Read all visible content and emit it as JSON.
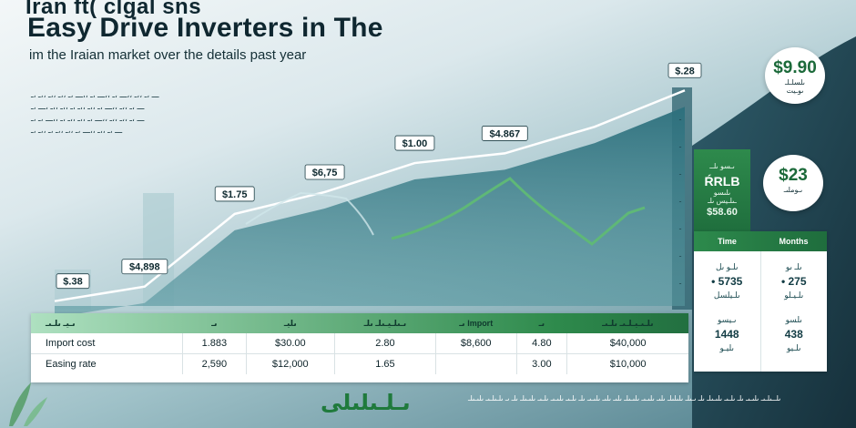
{
  "header": {
    "script_line": "Iran ft( clgal sns",
    "title": "Easy Drive Inverters in The",
    "subtitle": "im the Iraian market over the details past year"
  },
  "notes": [
    "ـــ ،ـ ،،ـ ،،ـــ ،ـ ،،ـــ ،ـ ،،ـــ ،ـ ،،ـ ،،ـ ،،ـ ،ـ",
    "ـــ ،ـ ،،ـ ،،ـــ ،ـ ،،ـ ،،ـ ،ـ ،،ـ ،،ـ ،ـــ ،ـ",
    "ـــ ،ـ ،،ـ ،،ـ ،،ـــ ،ـ ،،ـ ،،ـ ،ـ ،،ـــ ،ـ ،ـ",
    "ـــ ،ـ ،،ـ ،،ـــ ،ـ ،،ـ ،،ـ ،ـ ،،ـ ،ـ"
  ],
  "chart_data": {
    "type": "line",
    "series": [
      {
        "x": [
          1,
          2,
          3,
          4,
          5,
          6,
          7,
          8
        ],
        "values": [
          0.2,
          0.8,
          3.8,
          4.7,
          5.9,
          6.3,
          7.4,
          8.9
        ],
        "labels": [
          "$.38",
          "$4,898",
          "$1.75",
          "$6,75",
          "$1.00",
          "$4.867",
          "$.28"
        ]
      }
    ],
    "ylim": [
      0,
      10
    ],
    "colors": {
      "line": "#ffffff",
      "area": "#2c6f7c",
      "accent": "#5fb877"
    }
  },
  "green_card": {
    "top": "ىـسو ىلــ",
    "big": "ŔRLB",
    "line": "ىلىسو",
    "small": "ـىلـيس ىلـ",
    "val": "$58.60"
  },
  "bubble_1": {
    "value": "$9.90",
    "line1": "ىلسلـلـ",
    "line2": "ىوـيت"
  },
  "bubble_2": {
    "value": "$23",
    "line1": "ىـوملىـ"
  },
  "side_table": {
    "headers": [
      "Time",
      "Months"
    ],
    "col1": {
      "a": "ىلـو ىل",
      "v1": "• 5735",
      "b": "ىلـيلسل",
      "c": "ىـيسو",
      "v2": "1448",
      "d": "ىليـو"
    },
    "col2": {
      "a": "ىلـ ىو",
      "v1": "• 275",
      "b": "ىلـيـلو",
      "c": "ىلسو",
      "v2": "438",
      "d": "ىلـيو"
    }
  },
  "data_table": {
    "headers": [
      "ىـيـ ىلـىـ",
      "ىـ",
      "ىليـ",
      "ىـىلـيـىلـ ىلـ",
      "ىـ Import",
      "ىـ",
      "ىلـىـيـلـىـ ىلـىـ"
    ],
    "rows": [
      [
        "Import cost",
        "1.883",
        "$30.00",
        "2.80",
        "$8,600",
        "4.80",
        "$40,000"
      ],
      [
        "Easing rate",
        "2,590",
        "$12,000",
        "1.65",
        "",
        "3.00",
        "$10,000"
      ]
    ]
  },
  "footer": {
    "logo": "ىـلـىلىلى",
    "text": "ىلــىلـىـ ىلىـىـ ىلـ ىلـىـ ىلىـىلـ ىلـ ىـىلـ ىلىلىلـ ىلىـ ىلىـىـ ىلىـىلـ ىلىـ ىلىـ ىلىـىـ ىلـ ىلـىـ ىلىـىـ ىلـىـ ىلىـىلـ ىلـ ىـ ىلـىلـىـ ىلىـىلـ"
  }
}
